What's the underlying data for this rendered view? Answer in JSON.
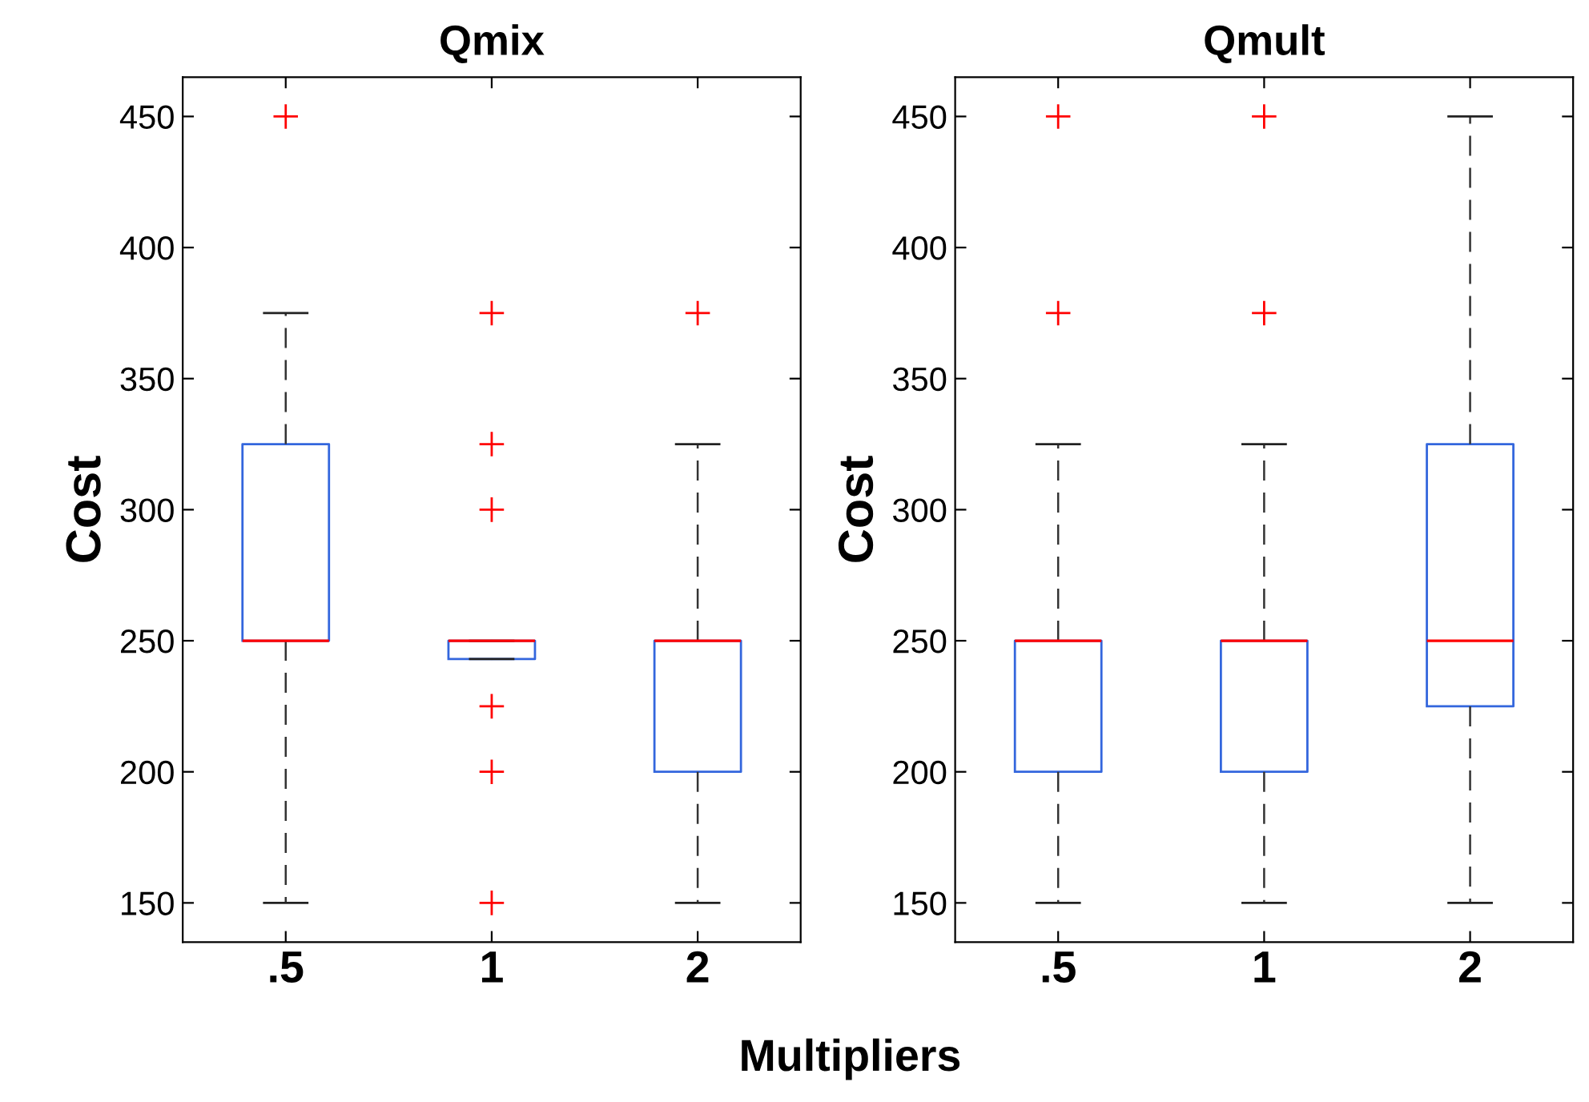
{
  "chart_data": [
    {
      "type": "box",
      "title": "Qmix",
      "ylabel": "Cost",
      "xlabel": "Multipliers",
      "categories": [
        ".5",
        "1",
        "2"
      ],
      "ylim": [
        135,
        465
      ],
      "yticks": [
        150,
        200,
        250,
        300,
        350,
        400,
        450
      ],
      "grid": false,
      "color": "#3366dd",
      "boxes": [
        {
          "low": 150,
          "q1": 250,
          "median": 250,
          "q3": 325,
          "high": 375,
          "outliers": [
            450
          ]
        },
        {
          "low": 243,
          "q1": 243,
          "median": 250,
          "q3": 250,
          "high": 250,
          "outliers": [
            375,
            325,
            300,
            225,
            200,
            150
          ]
        },
        {
          "low": 150,
          "q1": 200,
          "median": 250,
          "q3": 250,
          "high": 325,
          "outliers": [
            375
          ]
        }
      ]
    },
    {
      "type": "box",
      "title": "Qmult",
      "ylabel": "Cost",
      "categories": [
        ".5",
        "1",
        "2"
      ],
      "ylim": [
        135,
        465
      ],
      "yticks": [
        150,
        200,
        250,
        300,
        350,
        400,
        450
      ],
      "grid": false,
      "color": "#3366dd",
      "boxes": [
        {
          "low": 150,
          "q1": 200,
          "median": 250,
          "q3": 250,
          "high": 325,
          "outliers": [
            375,
            450
          ]
        },
        {
          "low": 150,
          "q1": 200,
          "median": 250,
          "q3": 250,
          "high": 325,
          "outliers": [
            375,
            450
          ]
        },
        {
          "low": 150,
          "q1": 225,
          "median": 250,
          "q3": 325,
          "high": 450
        }
      ]
    }
  ]
}
